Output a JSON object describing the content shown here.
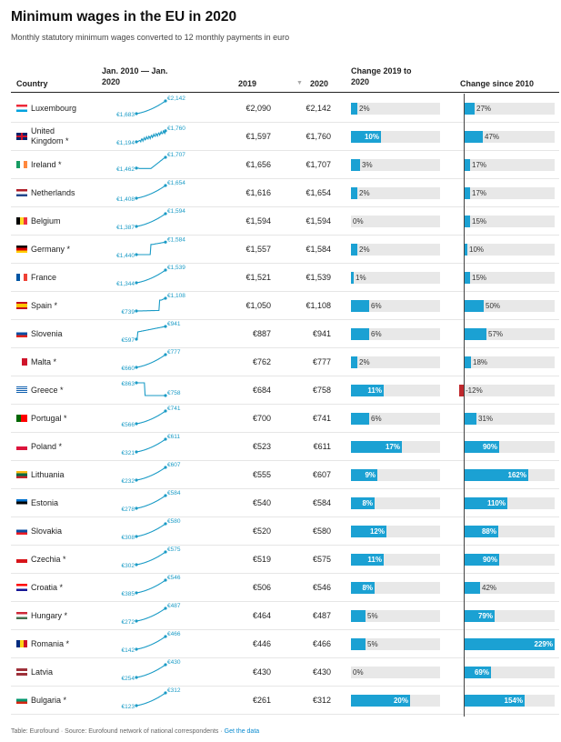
{
  "title": "Minimum wages in the EU in 2020",
  "subtitle": "Monthly statutory minimum wages converted to 12 monthly payments in euro",
  "headers": {
    "country": "Country",
    "trend_line1": "Jan. 2010 — Jan.",
    "trend_line2": "2020",
    "y2019": "2019",
    "sort_arrow": "▼",
    "y2020": "2020",
    "change_line1": "Change 2019 to",
    "change_line2": "2020",
    "since2010": "Change since 2010"
  },
  "footer": {
    "source": "Table: Eurofound · Source: Eurofound network of national correspondents · ",
    "link": "Get the data"
  },
  "colors": {
    "bar": "#1ba1d3",
    "negative": "#c0282d",
    "track": "#e8e8e8",
    "spark": "#1a9bc6"
  },
  "chart_data": {
    "type": "table",
    "title": "Minimum wages in the EU in 2020",
    "columns": [
      "Country",
      "Jan. 2010 — Jan. 2020",
      "2019",
      "2020",
      "Change 2019 to 2020",
      "Change since 2010"
    ],
    "rows": [
      {
        "country": "Luxembourg",
        "name_lines": [
          "Luxembourg"
        ],
        "flag": "luxembourg-flag",
        "start": "€1,683",
        "end": "€2,142",
        "shape": "rise",
        "v2019": "€2,090",
        "v2020": "€2,142",
        "chg": 2,
        "chg_label": "2%",
        "since": 27,
        "since_label": "27%"
      },
      {
        "country": "United Kingdom *",
        "name_lines": [
          "United",
          "Kingdom *"
        ],
        "flag": "uk-flag",
        "start": "€1,194",
        "end": "€1,760",
        "shape": "jagged",
        "v2019": "€1,597",
        "v2020": "€1,760",
        "chg": 10,
        "chg_label": "10%",
        "since": 47,
        "since_label": "47%"
      },
      {
        "country": "Ireland *",
        "name_lines": [
          "Ireland *"
        ],
        "flag": "ireland-flag",
        "start": "€1,462",
        "end": "€1,707",
        "shape": "flatrise",
        "v2019": "€1,656",
        "v2020": "€1,707",
        "chg": 3,
        "chg_label": "3%",
        "since": 17,
        "since_label": "17%"
      },
      {
        "country": "Netherlands",
        "name_lines": [
          "Netherlands"
        ],
        "flag": "netherlands-flag",
        "start": "€1,408",
        "end": "€1,654",
        "shape": "rise",
        "v2019": "€1,616",
        "v2020": "€1,654",
        "chg": 2,
        "chg_label": "2%",
        "since": 17,
        "since_label": "17%"
      },
      {
        "country": "Belgium",
        "name_lines": [
          "Belgium"
        ],
        "flag": "belgium-flag",
        "start": "€1,387",
        "end": "€1,594",
        "shape": "rise",
        "v2019": "€1,594",
        "v2020": "€1,594",
        "chg": 0,
        "chg_label": "0%",
        "since": 15,
        "since_label": "15%"
      },
      {
        "country": "Germany *",
        "name_lines": [
          "Germany *"
        ],
        "flag": "germany-flag",
        "start": "€1,440",
        "end": "€1,584",
        "shape": "late",
        "v2019": "€1,557",
        "v2020": "€1,584",
        "chg": 2,
        "chg_label": "2%",
        "since": 10,
        "since_label": "10%"
      },
      {
        "country": "France",
        "name_lines": [
          "France"
        ],
        "flag": "france-flag",
        "start": "€1,344",
        "end": "€1,539",
        "shape": "rise",
        "v2019": "€1,521",
        "v2020": "€1,539",
        "chg": 1,
        "chg_label": "1%",
        "since": 15,
        "since_label": "15%"
      },
      {
        "country": "Spain *",
        "name_lines": [
          "Spain *"
        ],
        "flag": "spain-flag",
        "start": "€739",
        "end": "€1,108",
        "shape": "flatjump",
        "v2019": "€1,050",
        "v2020": "€1,108",
        "chg": 6,
        "chg_label": "6%",
        "since": 50,
        "since_label": "50%"
      },
      {
        "country": "Slovenia",
        "name_lines": [
          "Slovenia"
        ],
        "flag": "slovenia-flag",
        "start": "€597",
        "end": "€941",
        "shape": "earlyjump",
        "v2019": "€887",
        "v2020": "€941",
        "chg": 6,
        "chg_label": "6%",
        "since": 57,
        "since_label": "57%"
      },
      {
        "country": "Malta *",
        "name_lines": [
          "Malta *"
        ],
        "flag": "malta-flag",
        "start": "€660",
        "end": "€777",
        "shape": "rise",
        "v2019": "€762",
        "v2020": "€777",
        "chg": 2,
        "chg_label": "2%",
        "since": 18,
        "since_label": "18%"
      },
      {
        "country": "Greece *",
        "name_lines": [
          "Greece *"
        ],
        "flag": "greece-flag",
        "start": "€863",
        "end": "€758",
        "shape": "drop",
        "v2019": "€684",
        "v2020": "€758",
        "chg": 11,
        "chg_label": "11%",
        "since": -12,
        "since_label": "-12%"
      },
      {
        "country": "Portugal *",
        "name_lines": [
          "Portugal *"
        ],
        "flag": "portugal-flag",
        "start": "€566",
        "end": "€741",
        "shape": "rise",
        "v2019": "€700",
        "v2020": "€741",
        "chg": 6,
        "chg_label": "6%",
        "since": 31,
        "since_label": "31%"
      },
      {
        "country": "Poland *",
        "name_lines": [
          "Poland *"
        ],
        "flag": "poland-flag",
        "start": "€321",
        "end": "€611",
        "shape": "rise",
        "v2019": "€523",
        "v2020": "€611",
        "chg": 17,
        "chg_label": "17%",
        "since": 90,
        "since_label": "90%"
      },
      {
        "country": "Lithuania",
        "name_lines": [
          "Lithuania"
        ],
        "flag": "lithuania-flag",
        "start": "€232",
        "end": "€607",
        "shape": "rise",
        "v2019": "€555",
        "v2020": "€607",
        "chg": 9,
        "chg_label": "9%",
        "since": 162,
        "since_label": "162%"
      },
      {
        "country": "Estonia",
        "name_lines": [
          "Estonia"
        ],
        "flag": "estonia-flag",
        "start": "€278",
        "end": "€584",
        "shape": "rise",
        "v2019": "€540",
        "v2020": "€584",
        "chg": 8,
        "chg_label": "8%",
        "since": 110,
        "since_label": "110%"
      },
      {
        "country": "Slovakia",
        "name_lines": [
          "Slovakia"
        ],
        "flag": "slovakia-flag",
        "start": "€308",
        "end": "€580",
        "shape": "rise",
        "v2019": "€520",
        "v2020": "€580",
        "chg": 12,
        "chg_label": "12%",
        "since": 88,
        "since_label": "88%"
      },
      {
        "country": "Czechia *",
        "name_lines": [
          "Czechia *"
        ],
        "flag": "czechia-flag",
        "start": "€302",
        "end": "€575",
        "shape": "rise",
        "v2019": "€519",
        "v2020": "€575",
        "chg": 11,
        "chg_label": "11%",
        "since": 90,
        "since_label": "90%"
      },
      {
        "country": "Croatia *",
        "name_lines": [
          "Croatia *"
        ],
        "flag": "croatia-flag",
        "start": "€385",
        "end": "€546",
        "shape": "rise",
        "v2019": "€506",
        "v2020": "€546",
        "chg": 8,
        "chg_label": "8%",
        "since": 42,
        "since_label": "42%"
      },
      {
        "country": "Hungary *",
        "name_lines": [
          "Hungary *"
        ],
        "flag": "hungary-flag",
        "start": "€272",
        "end": "€487",
        "shape": "rise",
        "v2019": "€464",
        "v2020": "€487",
        "chg": 5,
        "chg_label": "5%",
        "since": 79,
        "since_label": "79%"
      },
      {
        "country": "Romania *",
        "name_lines": [
          "Romania *"
        ],
        "flag": "romania-flag",
        "start": "€142",
        "end": "€466",
        "shape": "rise",
        "v2019": "€446",
        "v2020": "€466",
        "chg": 5,
        "chg_label": "5%",
        "since": 229,
        "since_label": "229%"
      },
      {
        "country": "Latvia",
        "name_lines": [
          "Latvia"
        ],
        "flag": "latvia-flag",
        "start": "€254",
        "end": "€430",
        "shape": "rise",
        "v2019": "€430",
        "v2020": "€430",
        "chg": 0,
        "chg_label": "0%",
        "since": 69,
        "since_label": "69%"
      },
      {
        "country": "Bulgaria *",
        "name_lines": [
          "Bulgaria *"
        ],
        "flag": "bulgaria-flag",
        "start": "€123",
        "end": "€312",
        "shape": "rise",
        "v2019": "€261",
        "v2020": "€312",
        "chg": 20,
        "chg_label": "20%",
        "since": 154,
        "since_label": "154%"
      }
    ]
  }
}
